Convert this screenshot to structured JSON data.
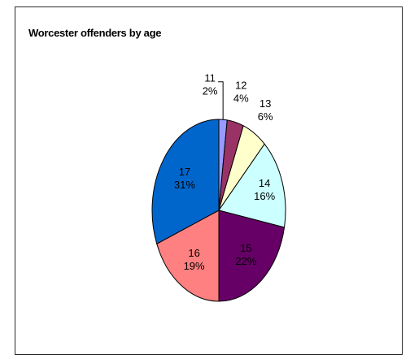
{
  "chart_data": {
    "type": "pie",
    "title": "Worcester offenders  by age",
    "legend": "none",
    "slices": [
      {
        "category": "11",
        "percent_label": "2%",
        "value": 2,
        "color": "#9999ff"
      },
      {
        "category": "12",
        "percent_label": "4%",
        "value": 4,
        "color": "#993366"
      },
      {
        "category": "13",
        "percent_label": "6%",
        "value": 6,
        "color": "#ffffcc"
      },
      {
        "category": "14",
        "percent_label": "16%",
        "value": 16,
        "color": "#ccffff"
      },
      {
        "category": "15",
        "percent_label": "22%",
        "value": 22,
        "color": "#660066"
      },
      {
        "category": "16",
        "percent_label": "19%",
        "value": 19,
        "color": "#ff8080"
      },
      {
        "category": "17",
        "percent_label": "31%",
        "value": 31,
        "color": "#0066cc"
      }
    ]
  }
}
